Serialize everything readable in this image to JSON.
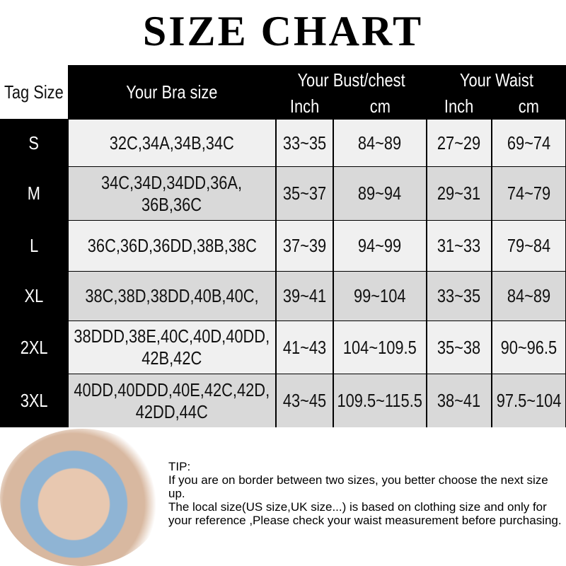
{
  "title": "SIZE CHART",
  "header": {
    "tag_size": "Tag Size",
    "bra_size": "Your Bra size",
    "bust": "Your Bust/chest",
    "waist": "Your Waist",
    "inch": "Inch",
    "cm": "cm"
  },
  "rows": [
    {
      "tag": "S",
      "bra": [
        "32C,34A,34B,34C"
      ],
      "bust_in": "33~35",
      "bust_cm": "84~89",
      "waist_in": "27~29",
      "waist_cm": "69~74"
    },
    {
      "tag": "M",
      "bra": [
        "34C,34D,34DD,36A,",
        "36B,36C"
      ],
      "bust_in": "35~37",
      "bust_cm": "89~94",
      "waist_in": "29~31",
      "waist_cm": "74~79"
    },
    {
      "tag": "L",
      "bra": [
        "36C,36D,36DD,38B,38C"
      ],
      "bust_in": "37~39",
      "bust_cm": "94~99",
      "waist_in": "31~33",
      "waist_cm": "79~84"
    },
    {
      "tag": "XL",
      "bra": [
        "38C,38D,38DD,40B,40C,"
      ],
      "bust_in": "39~41",
      "bust_cm": "99~104",
      "waist_in": "33~35",
      "waist_cm": "84~89"
    },
    {
      "tag": "2XL",
      "bra": [
        "38DDD,38E,40C,40D,40DD,",
        "42B,42C"
      ],
      "bust_in": "41~43",
      "bust_cm": "104~109.5",
      "waist_in": "35~38",
      "waist_cm": "90~96.5"
    },
    {
      "tag": "3XL",
      "bra": [
        "40DD,40DDD,40E,42C,42D,",
        "42DD,44C"
      ],
      "bust_in": "43~45",
      "bust_cm": "109.5~115.5",
      "waist_in": "38~41",
      "waist_cm": "97.5~104"
    }
  ],
  "tip": [
    "TIP:",
    "If you are on border between two sizes, you better choose the next size up.",
    "The local size(US size,UK size...) is based on clothing size and only for your reference ,Please check your waist measurement before purchasing."
  ],
  "colors": {
    "row_light": "#f0f0f0",
    "row_dark": "#d9d9d9",
    "header": "#000000"
  }
}
